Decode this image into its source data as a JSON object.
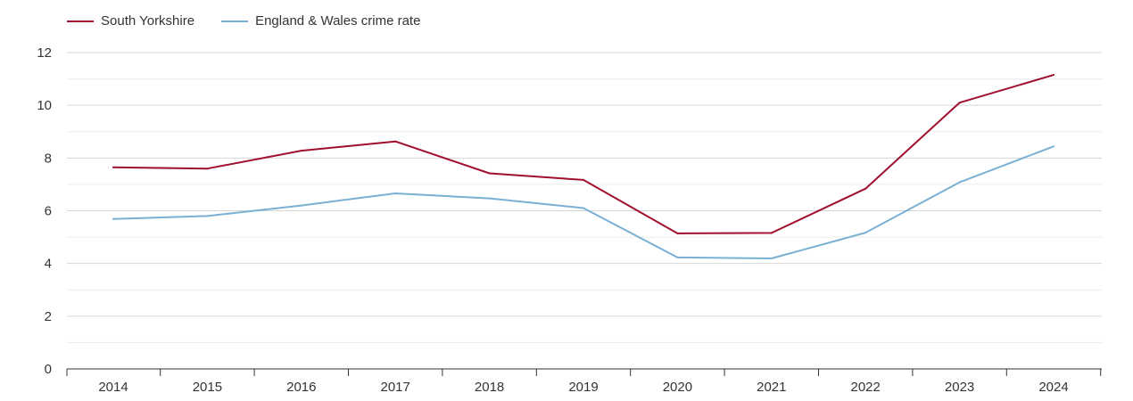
{
  "legend": {
    "series0": "South Yorkshire",
    "series1": "England & Wales crime rate"
  },
  "chart_data": {
    "type": "line",
    "title": "",
    "xlabel": "",
    "ylabel": "",
    "x": [
      "2014",
      "2015",
      "2016",
      "2017",
      "2018",
      "2019",
      "2020",
      "2021",
      "2022",
      "2023",
      "2024"
    ],
    "ylim": [
      0,
      12
    ],
    "yticks": [
      "0",
      "2",
      "4",
      "6",
      "8",
      "10",
      "12"
    ],
    "grid": true,
    "legend_position": "top-left",
    "series": [
      {
        "name": "South Yorkshire",
        "color": "#a0102e",
        "values": [
          7.65,
          7.6,
          8.28,
          8.63,
          7.42,
          7.17,
          5.14,
          5.16,
          6.84,
          10.1,
          11.15
        ]
      },
      {
        "name": "England & Wales crime rate",
        "color": "#7ab0d4",
        "values": [
          5.69,
          5.8,
          6.2,
          6.66,
          6.47,
          6.1,
          4.23,
          4.19,
          5.17,
          7.08,
          8.44
        ]
      }
    ]
  }
}
